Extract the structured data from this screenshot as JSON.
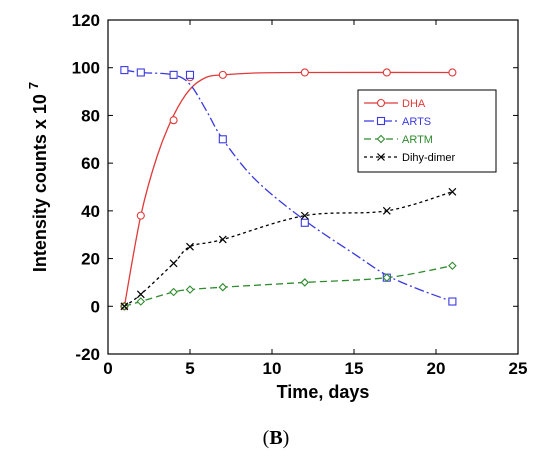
{
  "chart_data": {
    "type": "line",
    "xlabel": "Time, days",
    "ylabel": "Intensity counts x 10",
    "ylabel_exponent": "7",
    "xlim": [
      0,
      25
    ],
    "ylim": [
      -20,
      120
    ],
    "xticks": [
      0,
      5,
      10,
      15,
      20,
      25
    ],
    "yticks": [
      -20,
      0,
      20,
      40,
      60,
      80,
      100,
      120
    ],
    "grid": false,
    "legend_position": "top-right",
    "series": [
      {
        "name": "DHA",
        "color": "#e03a3a",
        "marker": "circle",
        "line_style": "solid",
        "points": [
          [
            1,
            0
          ],
          [
            2,
            38
          ],
          [
            4,
            78
          ],
          [
            5,
            96
          ],
          [
            7,
            97
          ],
          [
            12,
            98
          ],
          [
            17,
            98
          ],
          [
            21,
            98
          ]
        ],
        "curve": [
          [
            1,
            0
          ],
          [
            2,
            38
          ],
          [
            3,
            63
          ],
          [
            4,
            80
          ],
          [
            5,
            91
          ],
          [
            6,
            96
          ],
          [
            7,
            97
          ],
          [
            9,
            97.8
          ],
          [
            12,
            98
          ],
          [
            21,
            98
          ]
        ]
      },
      {
        "name": "ARTS",
        "color": "#3a3ae0",
        "marker": "square",
        "line_style": "dashdot",
        "points": [
          [
            1,
            99
          ],
          [
            2,
            98
          ],
          [
            4,
            97
          ],
          [
            5,
            97
          ],
          [
            7,
            70
          ],
          [
            12,
            35
          ],
          [
            17,
            12
          ],
          [
            21,
            2
          ]
        ],
        "curve": [
          [
            1,
            99
          ],
          [
            2,
            98
          ],
          [
            4,
            97
          ],
          [
            5,
            93
          ],
          [
            6,
            82
          ],
          [
            7,
            70
          ],
          [
            9,
            53
          ],
          [
            12,
            36
          ],
          [
            15,
            22
          ],
          [
            17,
            13
          ],
          [
            19,
            7
          ],
          [
            21,
            2
          ]
        ]
      },
      {
        "name": "ARTM",
        "color": "#2e8b2e",
        "marker": "diamond",
        "line_style": "dashed",
        "points": [
          [
            1,
            0
          ],
          [
            2,
            2
          ],
          [
            4,
            6
          ],
          [
            5,
            7
          ],
          [
            7,
            8
          ],
          [
            12,
            10
          ],
          [
            17,
            12
          ],
          [
            21,
            17
          ]
        ],
        "curve": [
          [
            1,
            0
          ],
          [
            2,
            2
          ],
          [
            4,
            6
          ],
          [
            5,
            7
          ],
          [
            7,
            8
          ],
          [
            12,
            10
          ],
          [
            17,
            12
          ],
          [
            21,
            17
          ]
        ]
      },
      {
        "name": "Dihy-dimer",
        "color": "#000000",
        "marker": "x",
        "line_style": "dotted",
        "points": [
          [
            1,
            0
          ],
          [
            2,
            5
          ],
          [
            4,
            18
          ],
          [
            5,
            25
          ],
          [
            7,
            28
          ],
          [
            12,
            38
          ],
          [
            17,
            40
          ],
          [
            21,
            48
          ]
        ],
        "curve": [
          [
            1,
            0
          ],
          [
            2,
            5
          ],
          [
            4,
            18
          ],
          [
            5,
            25
          ],
          [
            7,
            28
          ],
          [
            12,
            38
          ],
          [
            17,
            40
          ],
          [
            21,
            48
          ]
        ]
      }
    ]
  },
  "panel_label": "B"
}
